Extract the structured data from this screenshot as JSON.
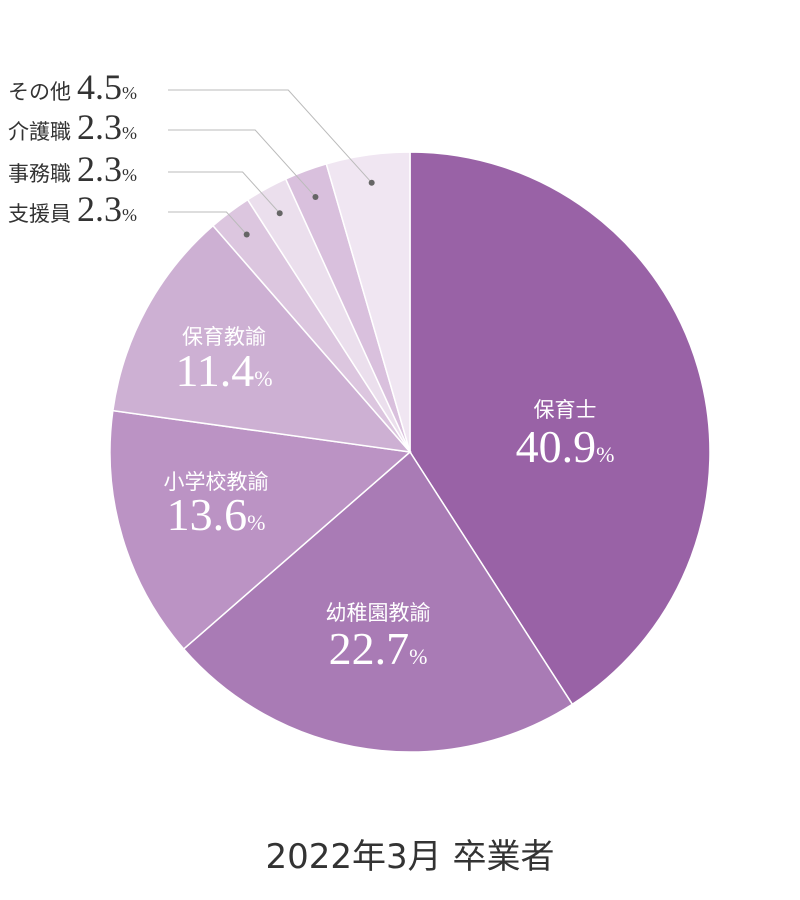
{
  "chart_data": {
    "type": "pie",
    "title": "2022年3月 卒業者",
    "unit": "%",
    "categories": [
      "保育士",
      "幼稚園教諭",
      "小学校教諭",
      "保育教諭",
      "支援員",
      "事務職",
      "介護職",
      "その他"
    ],
    "values": [
      40.9,
      22.7,
      13.6,
      11.4,
      2.3,
      2.3,
      2.3,
      4.5
    ],
    "colors": [
      "#9962a6",
      "#a97bb5",
      "#bb93c4",
      "#cdb0d3",
      "#dcc6df",
      "#ebdfed",
      "#d9c0dd",
      "#f0e6f2"
    ]
  }
}
